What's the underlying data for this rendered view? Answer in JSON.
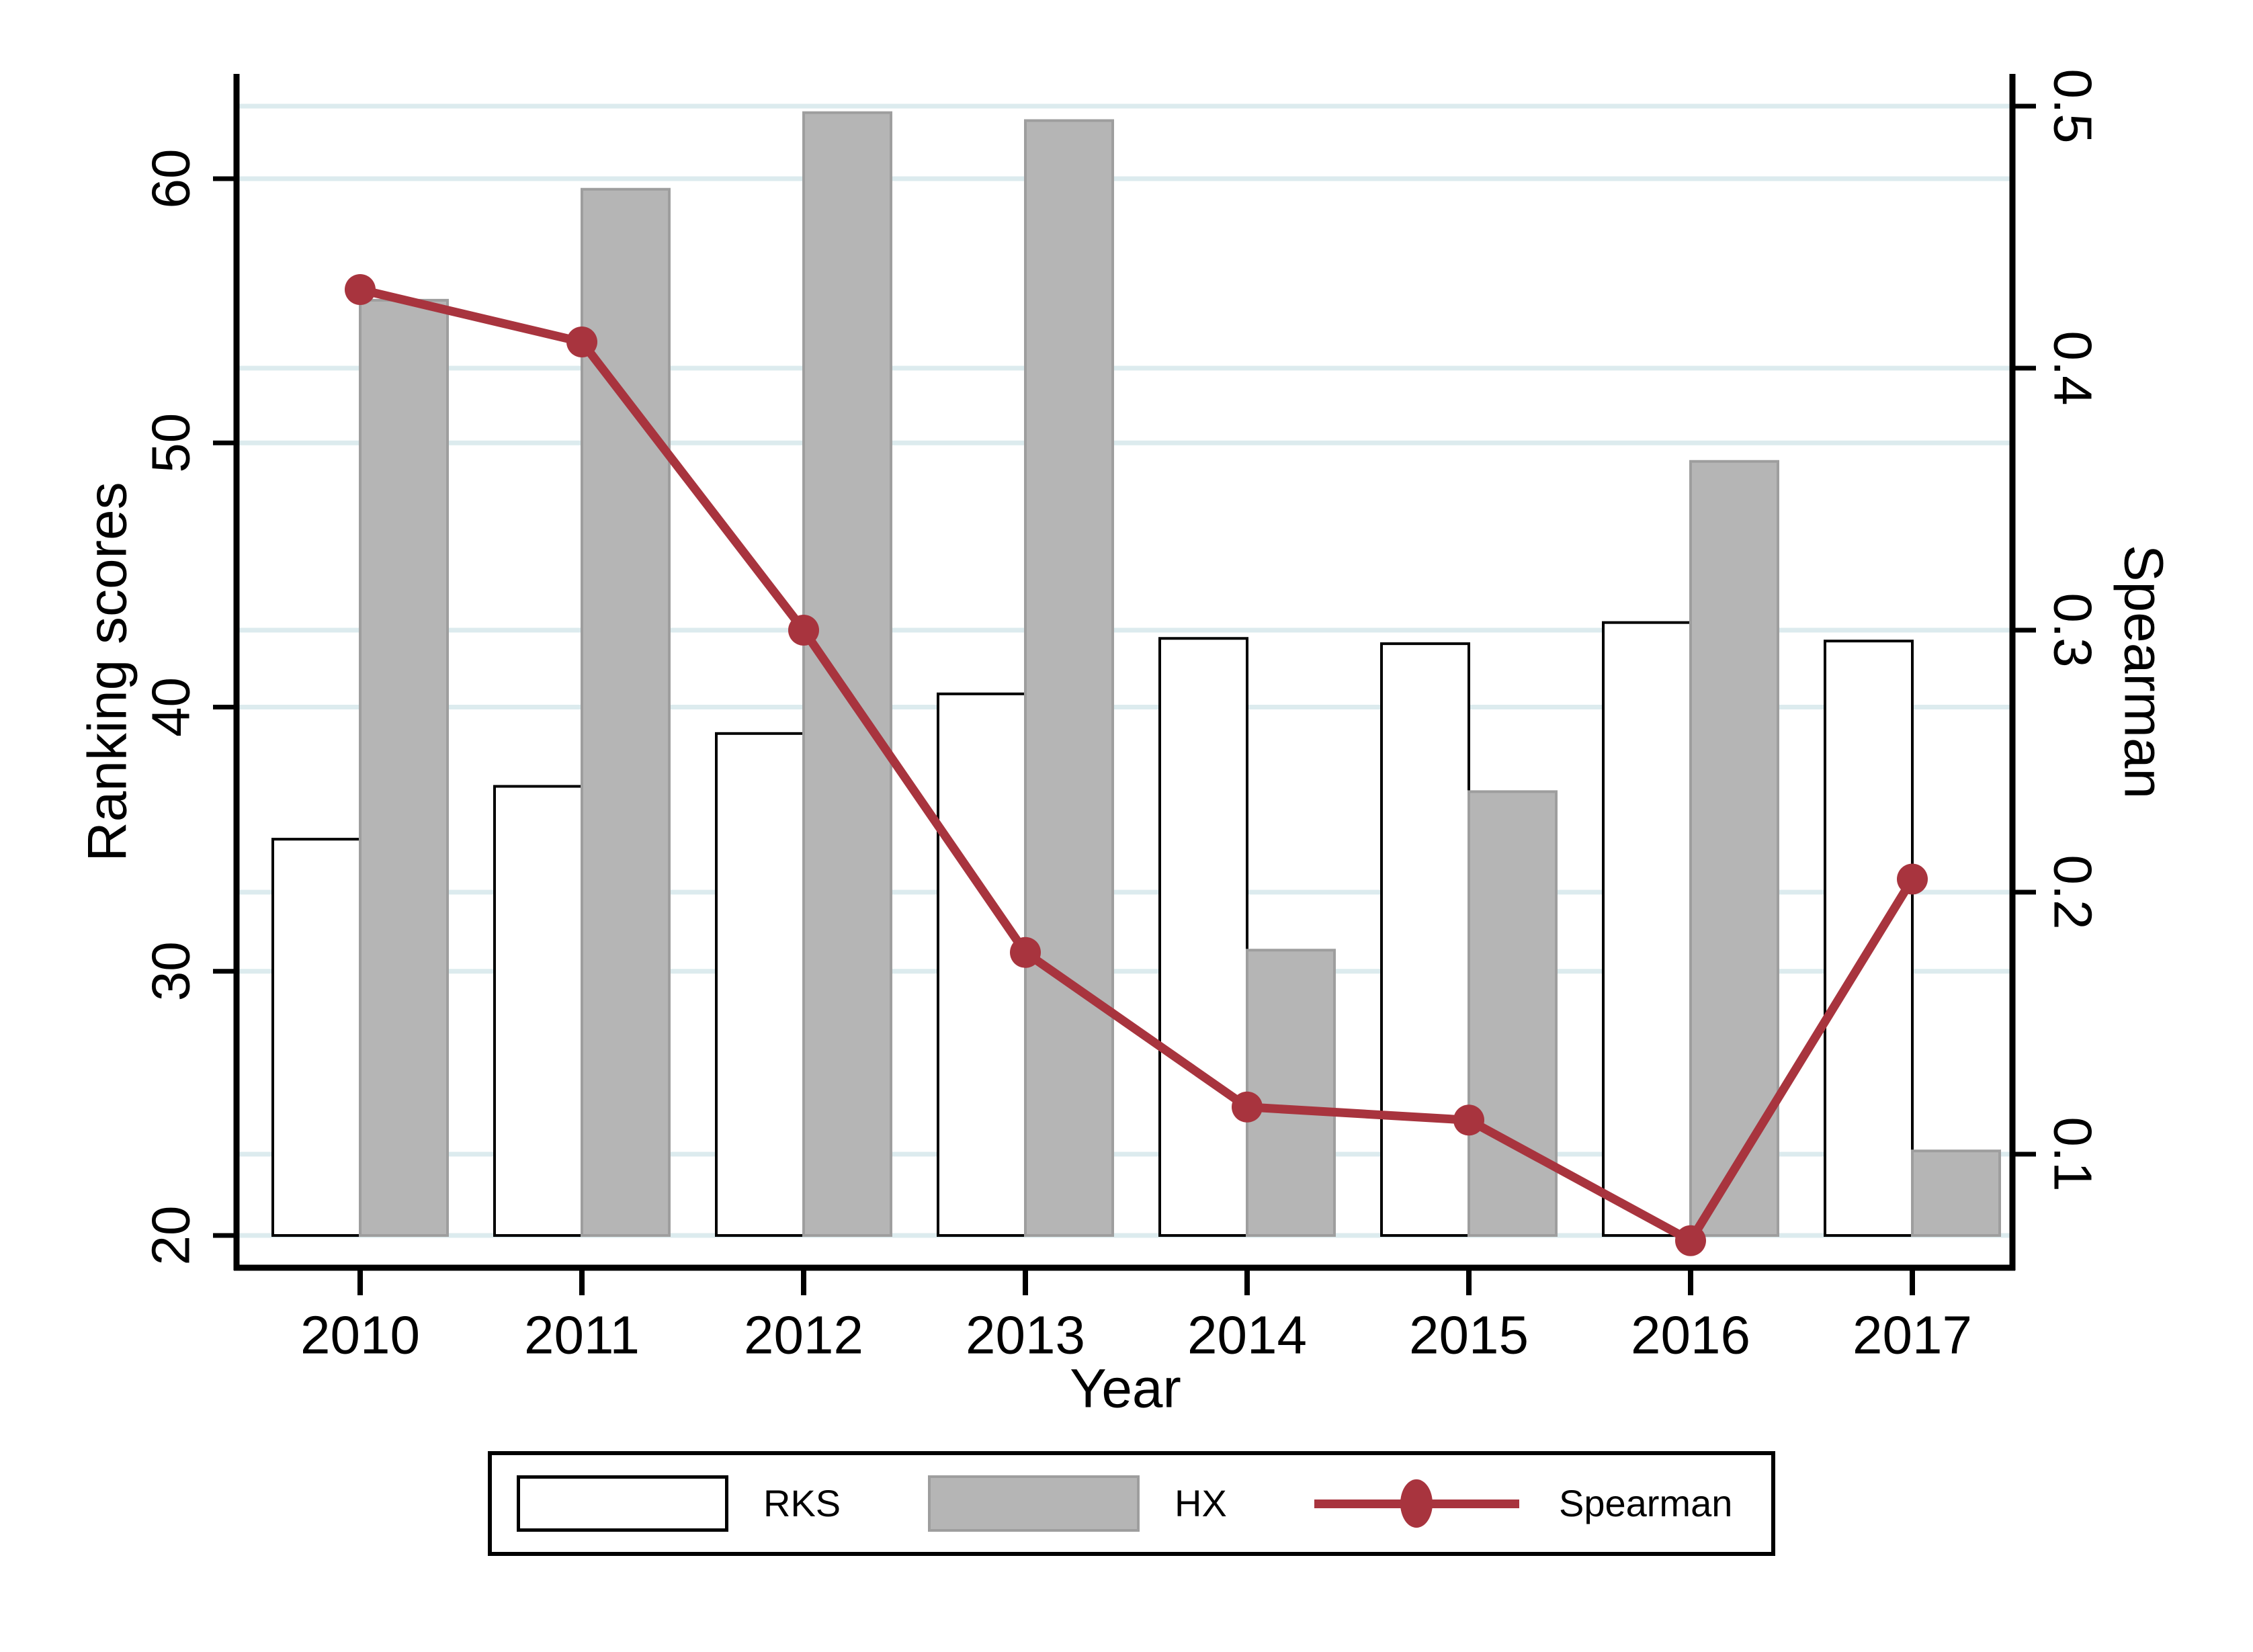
{
  "chart_data": {
    "type": "bar+line",
    "title": "",
    "categories": [
      "2010",
      "2011",
      "2012",
      "2013",
      "2014",
      "2015",
      "2016",
      "2017"
    ],
    "series": [
      {
        "name": "RKS",
        "type": "bar",
        "axis": "left",
        "values": [
          35.0,
          37.0,
          39.0,
          40.5,
          42.6,
          42.4,
          43.2,
          42.5
        ]
      },
      {
        "name": "HX",
        "type": "bar",
        "axis": "left",
        "values": [
          55.4,
          59.6,
          62.5,
          62.2,
          30.8,
          36.8,
          49.3,
          23.2
        ]
      },
      {
        "name": "Spearman",
        "type": "line",
        "axis": "right",
        "values": [
          0.43,
          0.41,
          0.3,
          0.177,
          0.118,
          0.113,
          0.067,
          0.205
        ]
      }
    ],
    "left_axis": {
      "label": "Ranking scores",
      "ticks": [
        20,
        30,
        40,
        50,
        60
      ],
      "range": [
        18.8,
        63.9
      ]
    },
    "right_axis": {
      "label": "Spearman",
      "ticks": [
        0.1,
        0.2,
        0.3,
        0.4,
        0.5
      ],
      "range": [
        0.052,
        0.511
      ]
    },
    "x_axis": {
      "label": "Year"
    },
    "grid": true,
    "legend": {
      "position": "bottom",
      "items": [
        {
          "label": "RKS"
        },
        {
          "label": "HX"
        },
        {
          "label": "Spearman"
        }
      ]
    },
    "colors": {
      "rks_fill": "#FFFFFF",
      "rks_border": "#000000",
      "hx_fill": "#B5B5B5",
      "hx_border": "#9E9E9E",
      "spearman": "#A8343E",
      "background": "#E8F1F2",
      "plot_background": "#FFFFFF",
      "gridline": "#DCEBEE",
      "axis": "#000000"
    }
  }
}
